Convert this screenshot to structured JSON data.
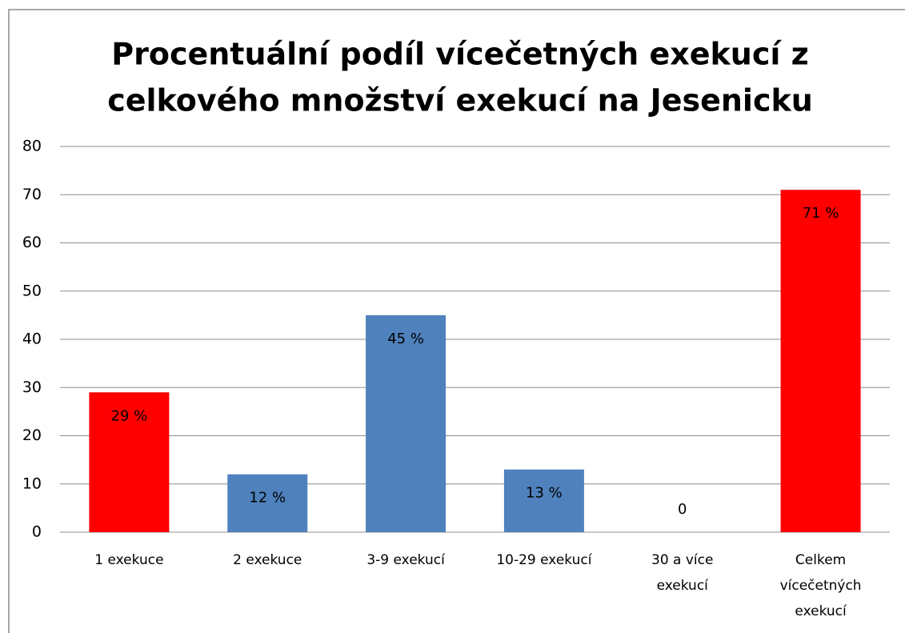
{
  "chart_data": {
    "type": "bar",
    "title": [
      "Procentuální podíl vícečetných exekucí z",
      "celkového množství exekucí na Jesenicku"
    ],
    "categories": [
      [
        "1 exekuce"
      ],
      [
        "2 exekuce"
      ],
      [
        "3-9 exekucí"
      ],
      [
        "10-29 exekucí"
      ],
      [
        "30 a více",
        "exekucí"
      ],
      [
        "Celkem",
        "vícečetných",
        "exekucí"
      ]
    ],
    "values": [
      29,
      12,
      45,
      13,
      0,
      71
    ],
    "value_labels": [
      "29 %",
      "12 %",
      "45 %",
      "13 %",
      "0",
      "71 %"
    ],
    "colors": [
      "#ff0000",
      "#4f81bd",
      "#4f81bd",
      "#4f81bd",
      "#4f81bd",
      "#ff0000"
    ],
    "ylim": [
      0,
      80
    ],
    "yticks": [
      0,
      10,
      20,
      30,
      40,
      50,
      60,
      70,
      80
    ],
    "grid": true
  }
}
